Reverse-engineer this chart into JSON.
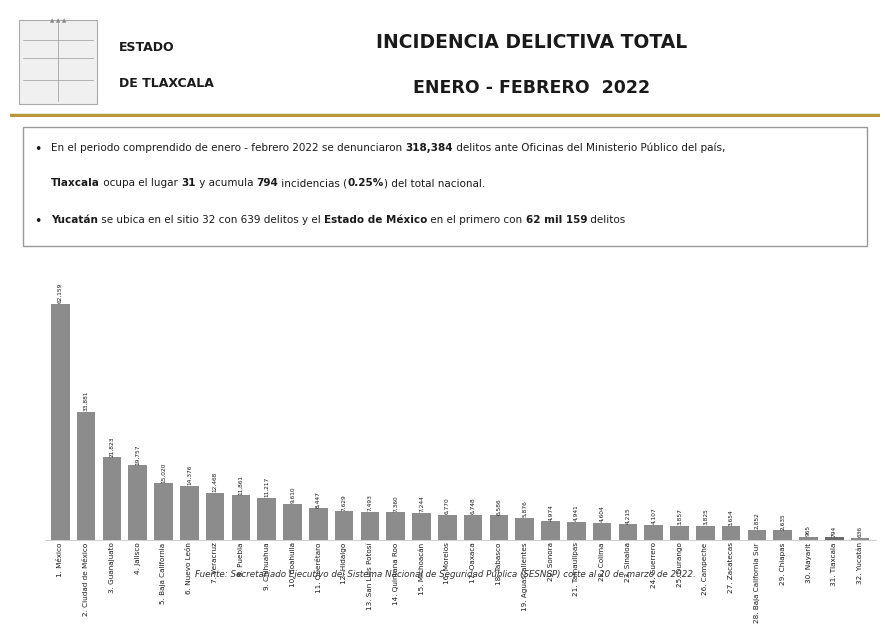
{
  "title_line1": "INCIDENCIA DELICTIVA TOTAL",
  "title_line2": "ENERO - FEBRERO  2022",
  "header_left_line1": "ESTADO",
  "header_left_line2": "DE TLAXCALA",
  "source": "Fuente: Secretariado Ejecutivo del Sistema Nacional de Seguridad Pública (SESNSP) corte al 20 de marzo de 2022.",
  "categories": [
    "1. México",
    "2. Ciudad de México",
    "3. Guanajuato",
    "4. Jalisco",
    "5. Baja California",
    "6. Nuevo León",
    "7. Veracruz",
    "8. Puebla",
    "9. Chihuahua",
    "10. Coahuila",
    "11. Querétaro",
    "12. Hidalgo",
    "13. San Luis Potosí",
    "14. Quintana Roo",
    "15. Michoacán",
    "16. Morelos",
    "17. Oaxaca",
    "18. Tabasco",
    "19. Aguascalientes",
    "20. Sonora",
    "21. Tamaulipas",
    "22. Colima",
    "23. Sinaloa",
    "24. Guerrero",
    "25. Durango",
    "26. Campeche",
    "27. Zacatecas",
    "28. Baja California Sur",
    "29. Chiapas",
    "30. Nayarit",
    "31. Tlaxcala",
    "32. Yucatán"
  ],
  "values": [
    62159,
    33881,
    21823,
    19757,
    15020,
    14376,
    12468,
    11861,
    11217,
    9610,
    8447,
    7629,
    7493,
    7360,
    7244,
    6770,
    6748,
    6586,
    5876,
    4974,
    4941,
    4604,
    4215,
    4107,
    3857,
    3825,
    3654,
    2852,
    2635,
    965,
    794,
    636
  ],
  "bar_color": "#8c8c8c",
  "tlaxcala_color": "#6a6a6a",
  "bg_color": "#ffffff",
  "title_color": "#1a1a1a",
  "separator_color": "#b8973a",
  "box_border_color": "#999999",
  "text_color": "#1a1a1a",
  "source_color": "#333333"
}
